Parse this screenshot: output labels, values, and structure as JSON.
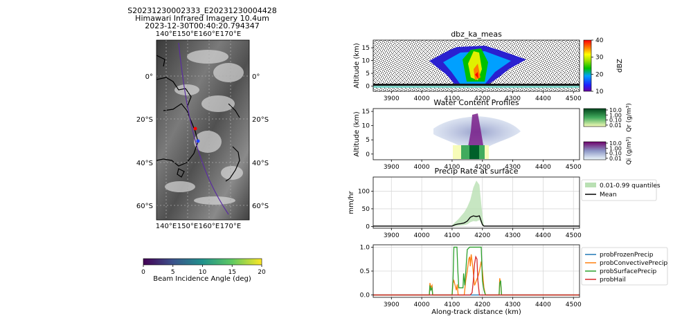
{
  "figure": {
    "map_title_line1": "S20231230002333_E20231230004428",
    "map_title_line2": "Himawari Infrared Imagery 10.4um",
    "map_title_line3": "2023-12-30T00:40:20.794347"
  },
  "chart_data": [
    {
      "type": "map",
      "lon_ticks": [
        "140°E",
        "150°E",
        "160°E",
        "170°E"
      ],
      "lat_ticks": [
        "0°",
        "20°S",
        "40°S",
        "60°S"
      ],
      "colorbar": {
        "label": "Beam Incidence Angle (deg)",
        "ticks": [
          "0",
          "5",
          "10",
          "15",
          "20"
        ],
        "range": [
          0,
          20
        ],
        "colormap": "viridis"
      },
      "markers": [
        {
          "name": "red",
          "color": "#ff0000"
        },
        {
          "name": "blue",
          "color": "#1f3fff"
        }
      ],
      "track_color": "#5a2ca0"
    },
    {
      "type": "heatmap",
      "title": "dbz_ka_meas",
      "ylabel": "Altitude (km)",
      "xlim": [
        3840,
        4520
      ],
      "ylim": [
        -2,
        18
      ],
      "xticks": [
        "3900",
        "4000",
        "4100",
        "4200",
        "4300",
        "4400",
        "4500"
      ],
      "yticks": [
        "0",
        "5",
        "10",
        "15"
      ],
      "colorbar": {
        "label": "dBZ",
        "ticks": [
          "10",
          "20",
          "30",
          "40"
        ],
        "range": [
          10,
          40
        ],
        "colormap": "jet"
      }
    },
    {
      "type": "heatmap",
      "title": "Water Content Profiles",
      "ylabel": "Altitude (km)",
      "xlim": [
        3840,
        4520
      ],
      "ylim": [
        -2,
        16
      ],
      "xticks": [
        "3900",
        "4000",
        "4100",
        "4200",
        "4300",
        "4400",
        "4500"
      ],
      "yticks": [
        "0",
        "5",
        "10",
        "15"
      ],
      "colorbars": [
        {
          "label": "Qr (g/m³)",
          "ticks": [
            "10.0",
            "1.00",
            "0.10",
            "0.01"
          ],
          "colormap": "greens"
        },
        {
          "label": "Qi (g/m³)",
          "ticks": [
            "10.0",
            "1.00",
            "0.10",
            "0.01"
          ],
          "colormap": "bupu"
        }
      ]
    },
    {
      "type": "line",
      "title": "Precip Rate at surface",
      "ylabel": "mm/hr",
      "xlim": [
        3840,
        4520
      ],
      "ylim": [
        -5,
        140
      ],
      "xticks": [
        "3900",
        "4000",
        "4100",
        "4200",
        "4300",
        "4400",
        "4500"
      ],
      "yticks": [
        "0",
        "50",
        "100"
      ],
      "grid": true,
      "legend": {
        "position": "right",
        "entries": [
          "0.01-0.99 quantiles",
          "Mean"
        ]
      },
      "series": [
        {
          "name": "Mean",
          "color": "#000000",
          "x": [
            3840,
            4100,
            4110,
            4120,
            4130,
            4140,
            4150,
            4160,
            4170,
            4180,
            4190,
            4200,
            4205,
            4520
          ],
          "y": [
            1,
            1,
            5,
            7,
            8,
            10,
            15,
            26,
            30,
            28,
            30,
            5,
            1,
            1
          ]
        },
        {
          "name": "0.01-0.99 quantiles",
          "color": "#b9e0b3",
          "x": [
            4100,
            4120,
            4140,
            4150,
            4160,
            4170,
            4180,
            4190,
            4200,
            4205
          ],
          "y_low": [
            0,
            2,
            4,
            6,
            12,
            15,
            14,
            18,
            2,
            0
          ],
          "y_high": [
            4,
            20,
            40,
            55,
            75,
            110,
            130,
            118,
            30,
            3
          ]
        }
      ]
    },
    {
      "type": "line",
      "xlabel": "Along-track distance (km)",
      "xlim": [
        3840,
        4520
      ],
      "ylim": [
        -0.05,
        1.05
      ],
      "xticks": [
        "3900",
        "4000",
        "4100",
        "4200",
        "4300",
        "4400",
        "4500"
      ],
      "yticks": [
        "0.0",
        "0.5",
        "1.0"
      ],
      "grid": true,
      "legend": {
        "position": "right",
        "entries": [
          "probFrozenPrecip",
          "probConvectivePrecip",
          "probSurfacePrecip",
          "probHail"
        ]
      },
      "series": [
        {
          "name": "probFrozenPrecip",
          "color": "#1f77b4",
          "x": [
            3840,
            4520
          ],
          "y": [
            0,
            0
          ]
        },
        {
          "name": "probConvectivePrecip",
          "color": "#ff7f0e",
          "x": [
            3840,
            4025,
            4027,
            4030,
            4034,
            4036,
            4100,
            4103,
            4106,
            4110,
            4114,
            4117,
            4120,
            4140,
            4145,
            4150,
            4155,
            4158,
            4160,
            4163,
            4168,
            4174,
            4180,
            4186,
            4190,
            4196,
            4200,
            4205,
            4210,
            4255,
            4257,
            4260,
            4263,
            4520
          ],
          "y": [
            0,
            0,
            0.25,
            0.15,
            0.2,
            0,
            0,
            0.25,
            0.3,
            0.2,
            0.1,
            0.22,
            0,
            0,
            0.3,
            0.5,
            0.75,
            0.8,
            0.6,
            0.85,
            0.6,
            0.2,
            0.3,
            0.4,
            0.5,
            0.7,
            0.5,
            0.15,
            0,
            0,
            0.35,
            0.25,
            0,
            0
          ]
        },
        {
          "name": "probSurfacePrecip",
          "color": "#2ca02c",
          "x": [
            3840,
            4025,
            4027,
            4030,
            4034,
            4036,
            4100,
            4103,
            4106,
            4108,
            4116,
            4119,
            4122,
            4136,
            4138,
            4142,
            4150,
            4158,
            4163,
            4196,
            4200,
            4205,
            4210,
            4255,
            4257,
            4260,
            4263,
            4520
          ],
          "y": [
            0,
            0,
            0.2,
            0.1,
            0.15,
            0,
            0,
            0.3,
            1,
            1,
            1,
            0.5,
            0.15,
            0.15,
            0.45,
            0.2,
            0.95,
            1,
            1,
            1,
            0.3,
            0.1,
            0,
            0,
            0.25,
            0.3,
            0,
            0
          ]
        },
        {
          "name": "probHail",
          "color": "#d62728",
          "x": [
            3840,
            4160,
            4166,
            4170,
            4174,
            4178,
            4182,
            4185,
            4190,
            4520
          ],
          "y": [
            0,
            0,
            0.05,
            0.3,
            0.65,
            0.8,
            0.75,
            0.3,
            0,
            0
          ]
        }
      ]
    }
  ]
}
